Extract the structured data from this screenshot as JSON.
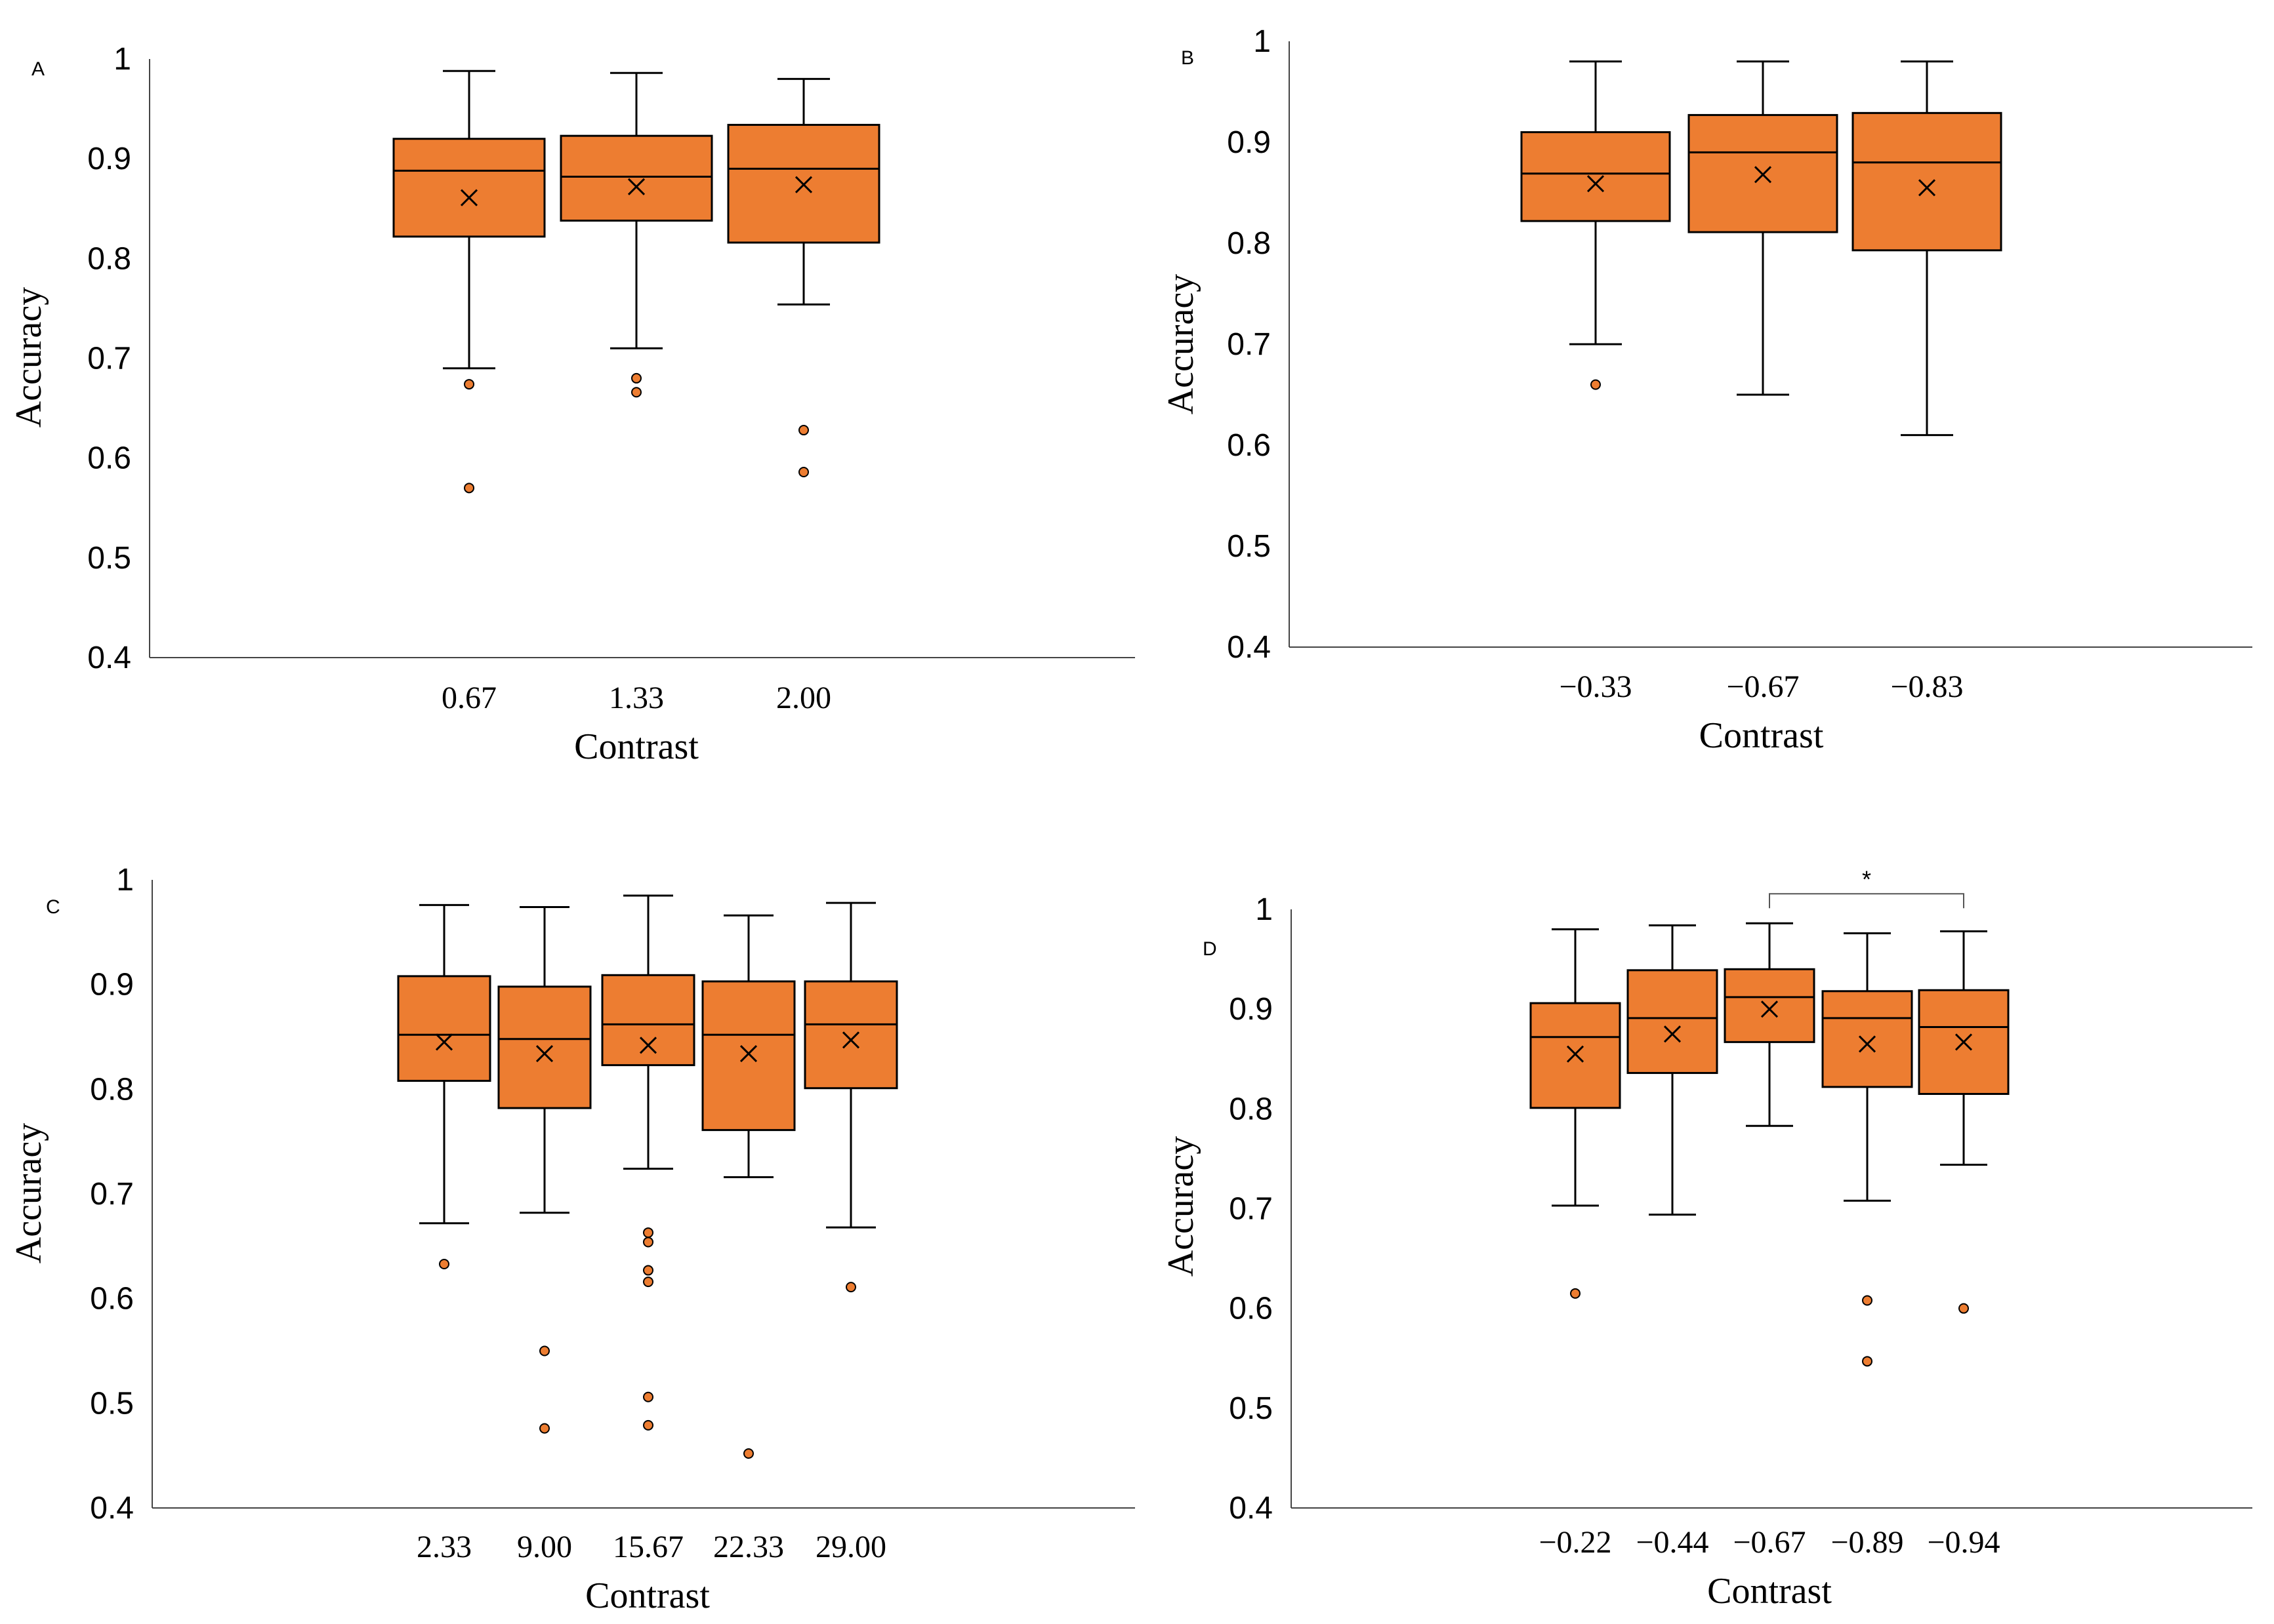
{
  "box_color": "#ED7D31",
  "outline_color": "#000000",
  "chart_data": [
    {
      "type": "box",
      "panel": "A",
      "xlabel": "Contrast",
      "ylabel": "Accuracy",
      "ylim": [
        0.4,
        1
      ],
      "yticks": [
        "0.4",
        "0.5",
        "0.6",
        "0.7",
        "0.8",
        "0.9",
        "1"
      ],
      "categories": [
        "0.67",
        "1.33",
        "2.00"
      ],
      "boxes": [
        {
          "min": 0.69,
          "q1": 0.822,
          "median": 0.888,
          "q3": 0.92,
          "max": 0.988,
          "mean": 0.861,
          "outliers": [
            0.674,
            0.57
          ]
        },
        {
          "min": 0.71,
          "q1": 0.838,
          "median": 0.882,
          "q3": 0.923,
          "max": 0.986,
          "mean": 0.872,
          "outliers": [
            0.68,
            0.666
          ]
        },
        {
          "min": 0.754,
          "q1": 0.816,
          "median": 0.89,
          "q3": 0.934,
          "max": 0.98,
          "mean": 0.874,
          "outliers": [
            0.628,
            0.586
          ]
        }
      ]
    },
    {
      "type": "box",
      "panel": "B",
      "xlabel": "Contrast",
      "ylabel": "Accuracy",
      "ylim": [
        0.4,
        1
      ],
      "yticks": [
        "0.4",
        "0.5",
        "0.6",
        "0.7",
        "0.8",
        "0.9",
        "1"
      ],
      "categories": [
        "−0.33",
        "−0.67",
        "−0.83"
      ],
      "boxes": [
        {
          "min": 0.7,
          "q1": 0.822,
          "median": 0.869,
          "q3": 0.91,
          "max": 0.98,
          "mean": 0.859,
          "outliers": [
            0.66
          ]
        },
        {
          "min": 0.65,
          "q1": 0.811,
          "median": 0.89,
          "q3": 0.927,
          "max": 0.98,
          "mean": 0.868,
          "outliers": []
        },
        {
          "min": 0.61,
          "q1": 0.793,
          "median": 0.88,
          "q3": 0.929,
          "max": 0.98,
          "mean": 0.855,
          "outliers": []
        }
      ]
    },
    {
      "type": "box",
      "panel": "C",
      "xlabel": "Contrast",
      "ylabel": "Accuracy",
      "ylim": [
        0.4,
        1
      ],
      "yticks": [
        "0.4",
        "0.5",
        "0.6",
        "0.7",
        "0.8",
        "0.9",
        "1"
      ],
      "categories": [
        "2.33",
        "9.00",
        "15.67",
        "22.33",
        "29.00"
      ],
      "boxes": [
        {
          "min": 0.672,
          "q1": 0.808,
          "median": 0.852,
          "q3": 0.908,
          "max": 0.976,
          "mean": 0.845,
          "outliers": [
            0.633
          ]
        },
        {
          "min": 0.682,
          "q1": 0.782,
          "median": 0.848,
          "q3": 0.898,
          "max": 0.974,
          "mean": 0.834,
          "outliers": [
            0.55,
            0.476
          ]
        },
        {
          "min": 0.724,
          "q1": 0.823,
          "median": 0.862,
          "q3": 0.909,
          "max": 0.985,
          "mean": 0.842,
          "outliers": [
            0.663,
            0.654,
            0.627,
            0.616,
            0.506,
            0.479
          ]
        },
        {
          "min": 0.716,
          "q1": 0.761,
          "median": 0.852,
          "q3": 0.903,
          "max": 0.966,
          "mean": 0.834,
          "outliers": [
            0.452
          ]
        },
        {
          "min": 0.668,
          "q1": 0.801,
          "median": 0.862,
          "q3": 0.903,
          "max": 0.978,
          "mean": 0.847,
          "outliers": [
            0.611
          ]
        }
      ]
    },
    {
      "type": "box",
      "panel": "D",
      "xlabel": "Contrast",
      "ylabel": "Accuracy",
      "ylim": [
        0.4,
        1
      ],
      "yticks": [
        "0.4",
        "0.5",
        "0.6",
        "0.7",
        "0.8",
        "0.9",
        "1"
      ],
      "categories": [
        "−0.22",
        "−0.44",
        "−0.67",
        "−0.89",
        "−0.94"
      ],
      "boxes": [
        {
          "min": 0.703,
          "q1": 0.801,
          "median": 0.872,
          "q3": 0.906,
          "max": 0.98,
          "mean": 0.855,
          "outliers": [
            0.615
          ]
        },
        {
          "min": 0.694,
          "q1": 0.836,
          "median": 0.891,
          "q3": 0.939,
          "max": 0.984,
          "mean": 0.875,
          "outliers": []
        },
        {
          "min": 0.783,
          "q1": 0.867,
          "median": 0.912,
          "q3": 0.94,
          "max": 0.986,
          "mean": 0.9,
          "outliers": []
        },
        {
          "min": 0.708,
          "q1": 0.822,
          "median": 0.891,
          "q3": 0.918,
          "max": 0.976,
          "mean": 0.865,
          "outliers": [
            0.608,
            0.547
          ]
        },
        {
          "min": 0.744,
          "q1": 0.815,
          "median": 0.882,
          "q3": 0.919,
          "max": 0.978,
          "mean": 0.867,
          "outliers": [
            0.6
          ]
        }
      ],
      "significance": {
        "between": [
          "−0.67",
          "−0.94"
        ],
        "label": "*"
      }
    }
  ]
}
